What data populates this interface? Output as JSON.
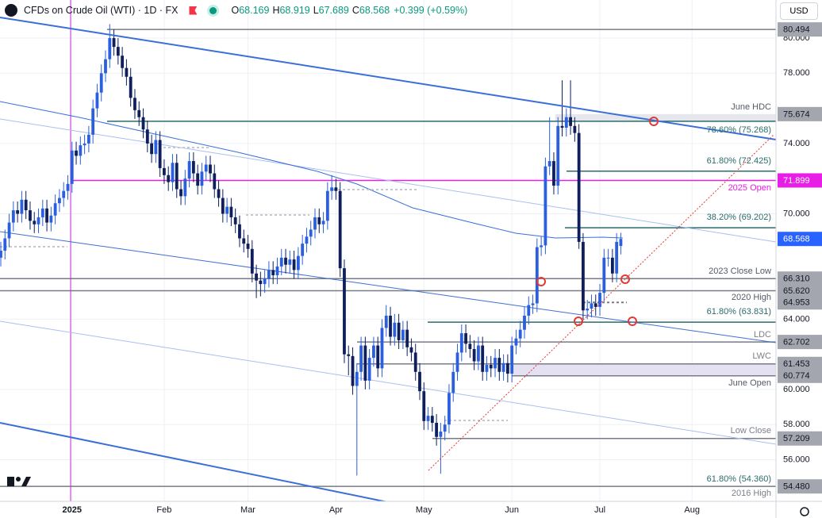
{
  "header": {
    "title": "CFDs on Crude Oil (WTI) · 1D · FX",
    "quote": [
      {
        "key": "O",
        "value": "68.169"
      },
      {
        "key": "H",
        "value": "68.919"
      },
      {
        "key": "L",
        "value": "67.689"
      },
      {
        "key": "C",
        "value": "68.568"
      }
    ],
    "change": "+0.399 (+0.59%)",
    "currency": "USD"
  },
  "chart_data": {
    "type": "candlestick",
    "up_color": "#2a5fe0",
    "down_color": "#0e1f5c",
    "categories": [
      null,
      null,
      null,
      null,
      null,
      null,
      null,
      null,
      null,
      null,
      null,
      null,
      null,
      null,
      null,
      null,
      null,
      "2025",
      null,
      null,
      null,
      null,
      null,
      null,
      null,
      null,
      null,
      null,
      null,
      null,
      null,
      null,
      null,
      null,
      null,
      null,
      null,
      null,
      null,
      "Feb",
      null,
      null,
      null,
      null,
      null,
      null,
      null,
      null,
      null,
      null,
      null,
      null,
      null,
      null,
      null,
      null,
      null,
      null,
      null,
      "Mar",
      null,
      null,
      null,
      null,
      null,
      null,
      null,
      null,
      null,
      null,
      null,
      null,
      null,
      null,
      null,
      null,
      null,
      null,
      null,
      null,
      "Apr",
      null,
      null,
      null,
      null,
      null,
      null,
      null,
      null,
      null,
      null,
      null,
      null,
      null,
      null,
      null,
      null,
      null,
      null,
      null,
      null,
      "May",
      null,
      null,
      null,
      null,
      null,
      null,
      null,
      null,
      null,
      null,
      null,
      null,
      null,
      null,
      null,
      null,
      null,
      null,
      null,
      null,
      "Jun",
      null,
      null,
      null,
      null,
      null,
      null,
      null,
      null,
      null,
      null,
      null,
      null,
      null,
      null,
      null,
      null,
      null,
      null,
      null,
      null,
      "Jul",
      null,
      null,
      null,
      null,
      null,
      null,
      null,
      null,
      null,
      null,
      null,
      null,
      null,
      null,
      null,
      null,
      null,
      null,
      null,
      null,
      null,
      "Aug"
    ],
    "open": [
      67.5,
      67.9,
      68.6,
      69.5,
      70.2,
      70.0,
      70.8,
      70.2,
      69.6,
      69.4,
      69.8,
      70.3,
      69.5,
      69.9,
      70.6,
      70.9,
      71.3,
      71.7,
      73.6,
      73.3,
      73.9,
      74.0,
      74.5,
      76.0,
      76.9,
      78.0,
      78.8,
      80.0,
      79.5,
      79.0,
      78.3,
      77.8,
      76.6,
      75.9,
      75.5,
      74.8,
      74.0,
      73.4,
      74.2,
      72.6,
      72.2,
      71.8,
      72.9,
      71.4,
      71.0,
      72.0,
      73.0,
      72.3,
      71.6,
      72.4,
      72.8,
      72.3,
      71.4,
      70.9,
      70.0,
      70.4,
      69.8,
      69.4,
      68.6,
      68.3,
      68.0,
      66.6,
      66.2,
      66.0,
      66.3,
      66.8,
      66.5,
      67.0,
      67.5,
      67.1,
      67.4,
      66.8,
      67.6,
      68.3,
      68.7,
      69.1,
      69.8,
      69.4,
      69.6,
      71.3,
      71.5,
      71.3,
      66.9,
      62.0,
      61.9,
      60.2,
      61.0,
      62.5,
      60.5,
      61.8,
      62.5,
      61.2,
      63.5,
      64.2,
      63.0,
      63.8,
      62.8,
      63.4,
      62.4,
      62.1,
      61.0,
      59.9,
      58.2,
      58.5,
      58.1,
      57.3,
      57.6,
      58.0,
      59.8,
      61.0,
      62.1,
      63.2,
      62.6,
      62.3,
      61.6,
      62.5,
      61.0,
      61.4,
      61.2,
      61.8,
      61.0,
      61.5,
      60.9,
      62.5,
      62.9,
      63.4,
      64.2,
      64.8,
      64.9,
      68.1,
      68.2,
      72.7,
      73.0,
      71.6,
      75.0,
      74.9,
      75.5,
      75.0,
      74.6,
      68.4,
      64.5,
      64.6,
      64.9,
      64.7,
      65.5,
      67.5,
      67.5,
      66.6,
      68.169,
      null,
      null,
      null,
      null,
      null,
      null,
      null,
      null,
      null,
      null,
      null,
      null,
      null,
      null,
      null,
      null,
      null
    ],
    "high": [
      68.4,
      69.1,
      70.0,
      70.7,
      70.7,
      71.3,
      71.3,
      70.7,
      70.1,
      70.3,
      70.8,
      70.8,
      70.4,
      71.1,
      71.4,
      71.8,
      72.2,
      74.1,
      74.1,
      74.4,
      74.5,
      75.0,
      76.5,
      77.4,
      78.5,
      79.3,
      80.8,
      80.5,
      80.0,
      79.5,
      78.8,
      78.3,
      77.1,
      76.4,
      76.0,
      75.3,
      74.5,
      74.7,
      74.7,
      73.1,
      72.7,
      73.4,
      73.4,
      71.9,
      72.5,
      73.5,
      73.5,
      72.8,
      72.9,
      73.3,
      73.3,
      72.8,
      71.9,
      71.4,
      70.9,
      70.9,
      70.3,
      69.9,
      69.1,
      68.8,
      68.5,
      67.1,
      66.7,
      66.8,
      67.3,
      67.3,
      67.5,
      68.0,
      68.0,
      67.9,
      67.9,
      68.1,
      68.8,
      69.2,
      69.6,
      70.3,
      70.3,
      70.1,
      71.8,
      72.2,
      72.0,
      71.8,
      67.4,
      62.5,
      62.4,
      61.5,
      63.0,
      63.0,
      62.3,
      63.0,
      63.0,
      64.0,
      64.8,
      64.7,
      64.3,
      64.3,
      63.9,
      63.9,
      62.9,
      62.6,
      61.5,
      60.4,
      59.0,
      59.0,
      58.6,
      58.1,
      58.5,
      60.3,
      61.5,
      62.6,
      63.7,
      63.7,
      63.1,
      62.8,
      63.0,
      63.0,
      61.9,
      61.9,
      62.3,
      62.3,
      62.0,
      62.0,
      63.0,
      63.4,
      63.9,
      64.7,
      65.3,
      65.4,
      68.6,
      68.7,
      73.2,
      75.5,
      73.5,
      75.5,
      77.6,
      76.0,
      77.6,
      75.5,
      75.1,
      68.9,
      65.1,
      65.4,
      65.4,
      66.0,
      68.0,
      68.0,
      68.0,
      68.9,
      68.919,
      null,
      null,
      null,
      null,
      null,
      null,
      null,
      null,
      null,
      null,
      null,
      null,
      null,
      null,
      null,
      null,
      null
    ],
    "low": [
      67.0,
      67.4,
      68.1,
      69.0,
      69.5,
      69.5,
      69.7,
      69.1,
      68.9,
      68.9,
      69.3,
      69.0,
      69.0,
      69.4,
      70.1,
      70.4,
      70.8,
      71.2,
      72.8,
      72.8,
      73.4,
      73.5,
      74.0,
      75.5,
      76.4,
      77.5,
      78.3,
      79.0,
      78.5,
      77.8,
      77.3,
      76.1,
      75.4,
      75.0,
      74.3,
      73.5,
      72.9,
      72.9,
      72.1,
      71.7,
      71.3,
      71.3,
      70.9,
      70.5,
      70.5,
      71.5,
      71.8,
      71.1,
      71.1,
      71.9,
      71.8,
      70.9,
      70.4,
      69.5,
      69.5,
      69.3,
      68.9,
      68.1,
      67.8,
      67.5,
      66.1,
      65.2,
      65.3,
      65.5,
      65.8,
      66.0,
      66.0,
      66.5,
      66.6,
      66.6,
      66.3,
      66.3,
      67.1,
      67.8,
      68.2,
      68.6,
      68.9,
      68.9,
      69.1,
      70.8,
      70.8,
      66.4,
      61.5,
      60.8,
      59.7,
      55.1,
      60.5,
      60.0,
      60.0,
      61.3,
      60.7,
      60.7,
      63.0,
      62.5,
      62.5,
      62.3,
      62.3,
      61.9,
      61.6,
      60.5,
      59.4,
      57.7,
      57.7,
      57.6,
      56.8,
      55.2,
      57.1,
      57.5,
      59.3,
      60.5,
      61.6,
      62.1,
      61.8,
      61.1,
      61.1,
      60.5,
      60.5,
      60.7,
      60.7,
      60.5,
      60.5,
      60.4,
      60.4,
      62.0,
      62.4,
      62.9,
      63.7,
      64.3,
      64.4,
      67.6,
      67.7,
      72.2,
      71.1,
      71.1,
      74.4,
      74.4,
      74.5,
      74.1,
      68.0,
      64.0,
      64.0,
      64.1,
      64.2,
      64.2,
      65.0,
      67.0,
      66.1,
      66.1,
      67.689,
      null,
      null,
      null,
      null,
      null,
      null,
      null,
      null,
      null,
      null,
      null,
      null,
      null,
      null,
      null,
      null,
      null
    ],
    "close": [
      67.9,
      68.6,
      69.5,
      70.2,
      70.0,
      70.8,
      70.2,
      69.6,
      69.4,
      69.8,
      70.3,
      69.5,
      69.9,
      70.6,
      70.9,
      71.3,
      71.7,
      73.6,
      73.3,
      73.9,
      74.0,
      74.5,
      76.0,
      76.9,
      78.0,
      78.8,
      80.0,
      79.5,
      79.0,
      78.3,
      77.8,
      76.6,
      75.9,
      75.5,
      74.8,
      74.0,
      73.4,
      74.2,
      72.6,
      72.2,
      71.8,
      72.9,
      71.4,
      71.0,
      72.0,
      73.0,
      72.3,
      71.6,
      72.4,
      72.8,
      72.3,
      71.4,
      70.9,
      70.0,
      70.4,
      69.8,
      69.4,
      68.6,
      68.3,
      68.0,
      66.6,
      66.2,
      66.0,
      66.3,
      66.8,
      66.5,
      67.0,
      67.5,
      67.1,
      67.4,
      66.8,
      67.6,
      68.3,
      68.7,
      69.1,
      69.8,
      69.4,
      69.6,
      71.3,
      71.5,
      71.3,
      66.9,
      62.0,
      61.9,
      60.2,
      61.0,
      62.5,
      60.5,
      61.8,
      62.5,
      61.2,
      63.5,
      64.2,
      63.0,
      63.8,
      62.8,
      63.4,
      62.4,
      62.1,
      61.0,
      59.9,
      58.2,
      58.5,
      58.1,
      57.3,
      57.6,
      58.0,
      59.8,
      61.0,
      62.1,
      63.2,
      62.6,
      62.3,
      61.6,
      62.5,
      61.0,
      61.4,
      61.2,
      61.8,
      61.0,
      61.5,
      60.9,
      62.5,
      62.9,
      63.4,
      64.2,
      64.8,
      64.9,
      68.1,
      68.2,
      72.7,
      73.0,
      71.6,
      75.0,
      74.9,
      75.5,
      75.0,
      74.6,
      68.4,
      64.5,
      64.6,
      64.9,
      64.7,
      65.5,
      67.5,
      67.5,
      66.6,
      68.4,
      68.568,
      null,
      null,
      null,
      null,
      null,
      null,
      null,
      null,
      null,
      null,
      null,
      null,
      null,
      null,
      null,
      null,
      null
    ],
    "ylim": [
      53.63,
      82.17
    ],
    "yticks": [
      {
        "value": 56,
        "label": "56.000"
      },
      {
        "value": 58,
        "label": "58.000"
      },
      {
        "value": 60,
        "label": "60.000"
      },
      {
        "value": 64,
        "label": "64.000"
      },
      {
        "value": 70,
        "label": "70.000"
      },
      {
        "value": 74,
        "label": "74.000"
      },
      {
        "value": 78,
        "label": "78.000"
      },
      {
        "value": 80,
        "label": "80.000"
      }
    ],
    "grid": true,
    "levels": [
      {
        "value": 80.494,
        "color": "#a3a6af"
      },
      {
        "value": 75.674,
        "color": "#a3a6af"
      },
      {
        "value": 71.899,
        "color": "#e91ee6"
      },
      {
        "value": 68.568,
        "color": "#2962ff"
      },
      {
        "value": {
          "value": 66.31,
          "label": "66.310"
        },
        "color": "#a3a6af"
      },
      {
        "value": {
          "value": 65.62,
          "label": "65.620"
        },
        "color": "#a3a6af"
      },
      {
        "value": 64.953,
        "color": "#a3a6af"
      },
      {
        "value": 62.702,
        "color": "#a3a6af"
      },
      {
        "value": 61.453,
        "color": "#a3a6af"
      },
      {
        "value": 60.774,
        "color": "#a3a6af"
      },
      {
        "value": 57.209,
        "color": "#a3a6af"
      },
      {
        "value": {
          "value": 54.48,
          "label": "54.480"
        },
        "color": "#a3a6af"
      }
    ],
    "annotations": [
      {
        "label": "June HDC",
        "color": "#555a66"
      },
      {
        "label": "78.60% (75.268)",
        "value": 75.268,
        "color": "#2b6b6b"
      },
      {
        "label": "61.80% (72.425)",
        "value": 72.425,
        "color": "#2b6b6b"
      },
      {
        "label": "2025 Open",
        "color": "#e91ee6"
      },
      {
        "label": "38.20% (69.202)",
        "value": 69.202,
        "color": "#2b6b6b"
      },
      {
        "label": "2023 Close Low",
        "color": "#555a66"
      },
      {
        "label": "2020 High",
        "color": "#555a66"
      },
      {
        "label": "61.80% (63.831)",
        "value": 63.831,
        "color": "#2b6b6b"
      },
      {
        "label": "LDC",
        "color": "#7a7f8a"
      },
      {
        "label": "LWC",
        "color": "#7a7f8a"
      },
      {
        "label": "June Open",
        "color": "#555a66"
      },
      {
        "label": "Low Close",
        "color": "#7a7f8a"
      },
      {
        "label": "61.80% (54.360)",
        "value": 54.36,
        "color": "#2b6b6b"
      },
      {
        "label": "2016 High",
        "color": "#7a7f8a"
      }
    ]
  }
}
